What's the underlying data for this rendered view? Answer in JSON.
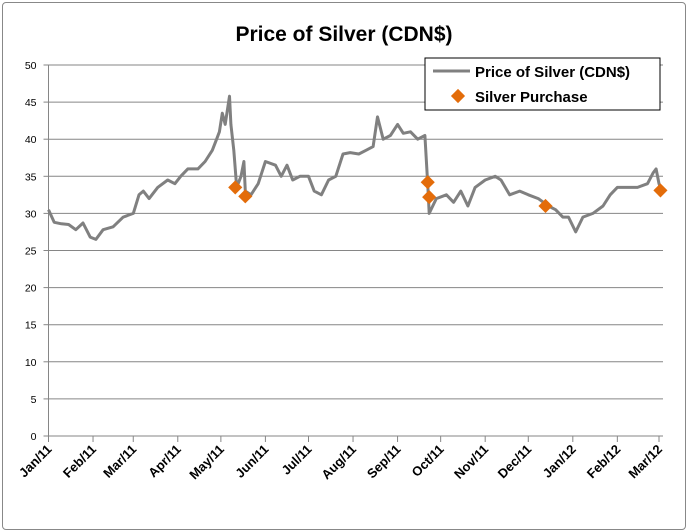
{
  "chart_data": {
    "type": "line",
    "title": "Price of Silver (CDN$)",
    "xlabel": "",
    "ylabel": "",
    "ylim": [
      0,
      50
    ],
    "yticks": [
      0,
      5,
      10,
      15,
      20,
      25,
      30,
      35,
      40,
      45,
      50
    ],
    "xlim": [
      "2011-01-01",
      "2012-03-01"
    ],
    "xtick_labels": [
      "Jan/11",
      "Feb/11",
      "Mar/11",
      "Apr/11",
      "May/11",
      "Jun/11",
      "Jul/11",
      "Aug/11",
      "Sep/11",
      "Oct/11",
      "Nov/11",
      "Dec/11",
      "Jan/12",
      "Feb/12",
      "Mar/12"
    ],
    "xtick_dates": [
      "2011-01-01",
      "2011-02-01",
      "2011-03-01",
      "2011-04-01",
      "2011-05-01",
      "2011-06-01",
      "2011-07-01",
      "2011-08-01",
      "2011-09-01",
      "2011-10-01",
      "2011-11-01",
      "2011-12-01",
      "2012-01-01",
      "2012-02-01",
      "2012-03-01"
    ],
    "grid": "horizontal",
    "legend_position": "top-right",
    "series": [
      {
        "name": "Price of Silver (CDN$)",
        "kind": "line",
        "color": "#808080",
        "points": [
          [
            "2011-01-01",
            30.5
          ],
          [
            "2011-01-05",
            28.8
          ],
          [
            "2011-01-10",
            28.6
          ],
          [
            "2011-01-15",
            28.5
          ],
          [
            "2011-01-20",
            27.8
          ],
          [
            "2011-01-25",
            28.7
          ],
          [
            "2011-01-30",
            26.8
          ],
          [
            "2011-02-03",
            26.5
          ],
          [
            "2011-02-08",
            27.8
          ],
          [
            "2011-02-15",
            28.2
          ],
          [
            "2011-02-22",
            29.5
          ],
          [
            "2011-03-01",
            30.0
          ],
          [
            "2011-03-05",
            32.5
          ],
          [
            "2011-03-08",
            33.0
          ],
          [
            "2011-03-12",
            32.0
          ],
          [
            "2011-03-18",
            33.5
          ],
          [
            "2011-03-25",
            34.5
          ],
          [
            "2011-03-30",
            34.0
          ],
          [
            "2011-04-03",
            35.0
          ],
          [
            "2011-04-08",
            36.0
          ],
          [
            "2011-04-15",
            36.0
          ],
          [
            "2011-04-20",
            37.0
          ],
          [
            "2011-04-25",
            38.5
          ],
          [
            "2011-04-28",
            40.0
          ],
          [
            "2011-04-30",
            41.0
          ],
          [
            "2011-05-02",
            43.5
          ],
          [
            "2011-05-04",
            42.0
          ],
          [
            "2011-05-07",
            45.8
          ],
          [
            "2011-05-08",
            42.0
          ],
          [
            "2011-05-10",
            38.5
          ],
          [
            "2011-05-12",
            33.5
          ],
          [
            "2011-05-15",
            35.0
          ],
          [
            "2011-05-17",
            37.0
          ],
          [
            "2011-05-18",
            33.0
          ],
          [
            "2011-05-22",
            32.5
          ],
          [
            "2011-05-27",
            34.0
          ],
          [
            "2011-06-01",
            37.0
          ],
          [
            "2011-06-08",
            36.5
          ],
          [
            "2011-06-12",
            35.0
          ],
          [
            "2011-06-16",
            36.5
          ],
          [
            "2011-06-20",
            34.5
          ],
          [
            "2011-06-25",
            35.0
          ],
          [
            "2011-07-01",
            35.0
          ],
          [
            "2011-07-05",
            33.0
          ],
          [
            "2011-07-10",
            32.5
          ],
          [
            "2011-07-15",
            34.5
          ],
          [
            "2011-07-20",
            35.0
          ],
          [
            "2011-07-25",
            38.0
          ],
          [
            "2011-07-30",
            38.2
          ],
          [
            "2011-08-05",
            38.0
          ],
          [
            "2011-08-10",
            38.5
          ],
          [
            "2011-08-15",
            39.0
          ],
          [
            "2011-08-18",
            43.0
          ],
          [
            "2011-08-22",
            40.0
          ],
          [
            "2011-08-27",
            40.5
          ],
          [
            "2011-09-01",
            42.0
          ],
          [
            "2011-09-05",
            40.8
          ],
          [
            "2011-09-10",
            41.0
          ],
          [
            "2011-09-15",
            40.0
          ],
          [
            "2011-09-20",
            40.5
          ],
          [
            "2011-09-22",
            34.0
          ],
          [
            "2011-09-23",
            30.0
          ],
          [
            "2011-09-28",
            32.0
          ],
          [
            "2011-10-05",
            32.5
          ],
          [
            "2011-10-10",
            31.5
          ],
          [
            "2011-10-15",
            33.0
          ],
          [
            "2011-10-20",
            31.0
          ],
          [
            "2011-10-25",
            33.5
          ],
          [
            "2011-11-01",
            34.5
          ],
          [
            "2011-11-08",
            35.0
          ],
          [
            "2011-11-12",
            34.5
          ],
          [
            "2011-11-18",
            32.5
          ],
          [
            "2011-11-25",
            33.0
          ],
          [
            "2011-12-01",
            32.5
          ],
          [
            "2011-12-08",
            32.0
          ],
          [
            "2011-12-15",
            31.0
          ],
          [
            "2011-12-20",
            30.5
          ],
          [
            "2011-12-25",
            29.5
          ],
          [
            "2011-12-29",
            29.5
          ],
          [
            "2012-01-03",
            27.5
          ],
          [
            "2012-01-08",
            29.5
          ],
          [
            "2012-01-15",
            30.0
          ],
          [
            "2012-01-22",
            31.0
          ],
          [
            "2012-01-27",
            32.5
          ],
          [
            "2012-02-01",
            33.5
          ],
          [
            "2012-02-08",
            33.5
          ],
          [
            "2012-02-15",
            33.5
          ],
          [
            "2012-02-22",
            34.0
          ],
          [
            "2012-02-26",
            35.5
          ],
          [
            "2012-02-28",
            36.0
          ],
          [
            "2012-03-01",
            34.0
          ],
          [
            "2012-03-03",
            33.0
          ]
        ]
      },
      {
        "name": "Silver Purchase",
        "kind": "marker",
        "color": "#E36C0A",
        "points": [
          [
            "2011-05-11",
            33.5
          ],
          [
            "2011-05-18",
            32.3
          ],
          [
            "2011-09-22",
            34.2
          ],
          [
            "2011-09-23",
            32.2
          ],
          [
            "2011-12-13",
            31.0
          ],
          [
            "2012-03-02",
            33.1
          ]
        ]
      }
    ]
  }
}
